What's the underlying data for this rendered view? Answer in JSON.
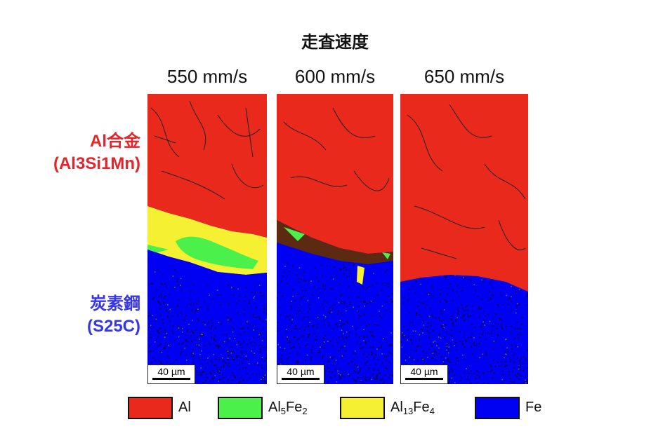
{
  "title": "走査速度",
  "speeds": [
    "550 mm/s",
    "600 mm/s",
    "650 mm/s"
  ],
  "labels": {
    "al_line1": "Al合金",
    "al_line2": "(Al3Si1Mn)",
    "fe_line1": "炭素鋼",
    "fe_line2": "(S25C)"
  },
  "scale_bar": "40 µm",
  "legend": [
    {
      "base": "Al",
      "parts": [],
      "color": "#e8291c"
    },
    {
      "base": "Al",
      "parts": [
        [
          "5",
          "Fe",
          "2"
        ]
      ],
      "color": "#4cf04a"
    },
    {
      "base": "Al",
      "parts": [
        [
          "13",
          "Fe",
          "4"
        ]
      ],
      "color": "#f6f033"
    },
    {
      "base": "Fe",
      "parts": [],
      "color": "#0000f2"
    }
  ],
  "colors": {
    "al": "#e8291c",
    "al5fe2": "#4cf04a",
    "al13fe4": "#f6f033",
    "fe": "#0000f2",
    "al_label": "#e3262b",
    "fe_label": "#3737e6"
  }
}
